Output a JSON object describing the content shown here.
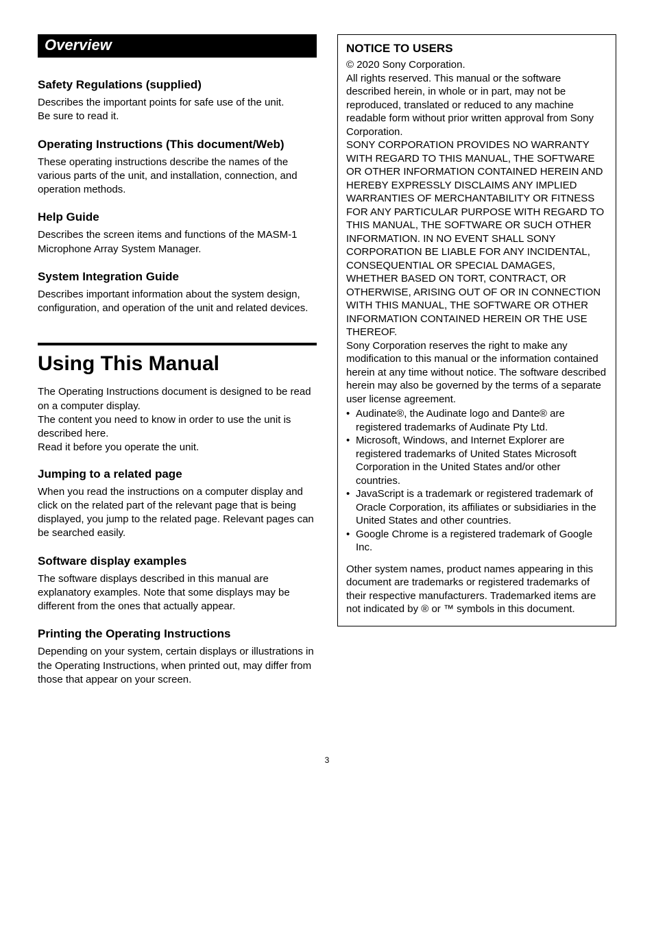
{
  "left": {
    "overview_label": "Overview",
    "sections": {
      "safety": {
        "heading": "Safety Regulations (supplied)",
        "p1": "Describes the important points for safe use of the unit.",
        "p2": "Be sure to read it."
      },
      "opins": {
        "heading": "Operating Instructions (This document/Web)",
        "p": "These operating instructions describe the names of the various parts of the unit, and installation, connection, and operation methods."
      },
      "help": {
        "heading": "Help Guide",
        "p": "Describes the screen items and functions of the MASM-1 Microphone Array System Manager."
      },
      "sysint": {
        "heading": "System Integration Guide",
        "p": "Describes important information about the system design, configuration, and operation of the unit and related devices."
      }
    },
    "using": {
      "heading": "Using This Manual",
      "intro1": "The Operating Instructions document is designed to be read on a computer display.",
      "intro2": "The content you need to know in order to use the unit is described here.",
      "intro3": "Read it before you operate the unit.",
      "jumping": {
        "heading": "Jumping to a related page",
        "p": "When you read the instructions on a computer display and click on the related part of the relevant page that is being displayed, you jump to the related page. Relevant pages can be searched easily."
      },
      "software": {
        "heading": "Software display examples",
        "p": "The software displays described in this manual are explanatory examples. Note that some displays may be different from the ones that actually appear."
      },
      "printing": {
        "heading": "Printing the Operating Instructions",
        "p": "Depending on your system, certain displays or illustrations in the Operating Instructions, when printed out, may differ from those that appear on your screen."
      }
    }
  },
  "right": {
    "notice": {
      "title": "NOTICE TO USERS",
      "copyright": "© 2020 Sony Corporation.",
      "p1": "All rights reserved. This manual or the software described herein, in whole or in part, may not be reproduced, translated or reduced to any machine readable form without prior written approval from Sony Corporation.",
      "p2": "SONY CORPORATION PROVIDES NO WARRANTY WITH REGARD TO THIS MANUAL, THE SOFTWARE OR OTHER INFORMATION CONTAINED HEREIN AND HEREBY EXPRESSLY DISCLAIMS ANY IMPLIED WARRANTIES OF MERCHANTABILITY OR FITNESS FOR ANY PARTICULAR PURPOSE WITH REGARD TO THIS MANUAL, THE SOFTWARE OR SUCH OTHER INFORMATION. IN NO EVENT SHALL SONY CORPORATION BE LIABLE FOR ANY INCIDENTAL, CONSEQUENTIAL OR SPECIAL DAMAGES, WHETHER BASED ON TORT, CONTRACT, OR OTHERWISE, ARISING OUT OF OR IN CONNECTION WITH THIS MANUAL, THE SOFTWARE OR OTHER INFORMATION CONTAINED HEREIN OR THE USE THEREOF.",
      "p3": "Sony Corporation reserves the right to make any modification to this manual or the information contained herein at any time without notice. The software described herein may also be governed by the terms of a separate user license agreement.",
      "bullets": [
        "Audinate®, the Audinate logo and Dante® are registered trademarks of Audinate Pty Ltd.",
        "Microsoft, Windows, and Internet Explorer are registered trademarks of United States Microsoft Corporation in the United States and/or other countries.",
        "JavaScript is a trademark or registered trademark of Oracle Corporation, its affiliates or subsidiaries in the United States and other countries.",
        "Google Chrome is a registered trademark of Google Inc."
      ],
      "p4": "Other system names, product names appearing in this document are trademarks or registered trademarks of their respective manufacturers. Trademarked items are not indicated by ® or ™ symbols in this document."
    }
  },
  "page_number": "3"
}
